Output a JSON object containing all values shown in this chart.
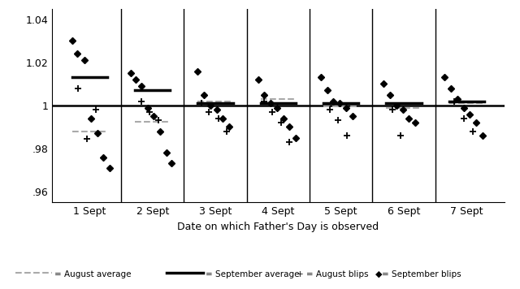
{
  "title": "",
  "xlabel": "Date on which Father's Day is observed",
  "ylabel": "",
  "ylim": [
    0.955,
    1.045
  ],
  "yticks": [
    0.96,
    0.98,
    1.0,
    1.02,
    1.04
  ],
  "ytick_labels": [
    ".96",
    ".98",
    "1",
    "1.02",
    "1.04"
  ],
  "sections": [
    1,
    2,
    3,
    4,
    5,
    6,
    7
  ],
  "section_labels": [
    "1 Sept",
    "2 Sept",
    "3 Sept",
    "4 Sept",
    "5 Sept",
    "6 Sept",
    "7 Sept"
  ],
  "aug_avg": [
    0.988,
    0.9925,
    1.002,
    1.003,
    0.9995,
    0.999,
    1.001
  ],
  "sep_avg": [
    1.013,
    1.007,
    1.001,
    1.001,
    1.001,
    1.001,
    1.002
  ],
  "aug_blips_x": {
    "1": [
      0.82,
      0.95,
      1.1
    ],
    "2": [
      1.82,
      1.95,
      2.1
    ],
    "3": [
      2.78,
      2.9,
      3.05,
      3.18
    ],
    "4": [
      3.78,
      3.9,
      4.05,
      4.18
    ],
    "5": [
      4.82,
      4.95,
      5.1
    ],
    "6": [
      5.82,
      5.95
    ],
    "7": [
      6.8,
      6.95,
      7.1
    ]
  },
  "aug_blips_y": {
    "1": [
      1.008,
      0.9845,
      0.998
    ],
    "2": [
      1.002,
      0.997,
      0.993
    ],
    "3": [
      1.001,
      0.997,
      0.994,
      0.988
    ],
    "4": [
      1.002,
      0.997,
      0.992,
      0.983
    ],
    "5": [
      0.998,
      0.993,
      0.986
    ],
    "6": [
      0.998,
      0.986
    ],
    "7": [
      1.002,
      0.994,
      0.988
    ]
  },
  "sep_blips_x": {
    "1": [
      0.72,
      0.8,
      0.92,
      1.02,
      1.12,
      1.22,
      1.32
    ],
    "2": [
      1.65,
      1.73,
      1.82,
      1.92,
      2.02,
      2.12,
      2.22,
      2.3
    ],
    "3": [
      2.72,
      2.82,
      2.92,
      3.02,
      3.12,
      3.22
    ],
    "4": [
      3.68,
      3.78,
      3.88,
      3.98,
      4.08,
      4.18,
      4.28
    ],
    "5": [
      4.68,
      4.78,
      4.88,
      4.98,
      5.08,
      5.18
    ],
    "6": [
      5.68,
      5.78,
      5.88,
      5.98,
      6.08,
      6.18
    ],
    "7": [
      6.65,
      6.75,
      6.85,
      6.95,
      7.05,
      7.15,
      7.25
    ]
  },
  "sep_blips_y": {
    "1": [
      1.03,
      1.024,
      1.021,
      0.994,
      0.987,
      0.976,
      0.971
    ],
    "2": [
      1.015,
      1.012,
      1.009,
      0.999,
      0.995,
      0.988,
      0.978,
      0.973
    ],
    "3": [
      1.016,
      1.005,
      1.0,
      0.998,
      0.994,
      0.99
    ],
    "4": [
      1.012,
      1.005,
      1.001,
      0.999,
      0.994,
      0.99,
      0.985
    ],
    "5": [
      1.013,
      1.007,
      1.002,
      1.001,
      0.999,
      0.995
    ],
    "6": [
      1.01,
      1.005,
      1.0,
      0.998,
      0.994,
      0.992
    ],
    "7": [
      1.013,
      1.008,
      1.003,
      0.999,
      0.996,
      0.992,
      0.986
    ]
  },
  "background_color": "#ffffff",
  "aug_avg_color": "#aaaaaa",
  "sep_avg_color": "#000000"
}
